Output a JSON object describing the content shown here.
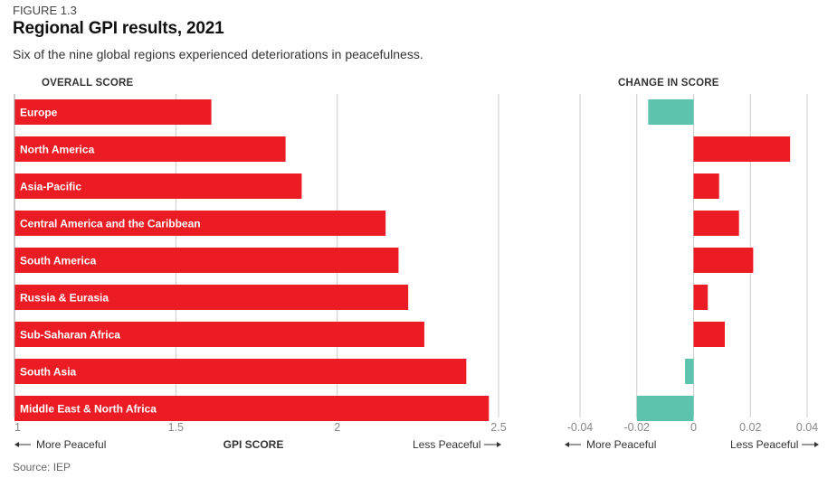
{
  "figure_label": "FIGURE 1.3",
  "title": "Regional GPI results, 2021",
  "subtitle": "Six of the nine global regions experienced deteriorations in peacefulness.",
  "source": "Source: IEP",
  "colors": {
    "deteriorate": "#ec1c24",
    "improve": "#5cc4ac",
    "grid": "#cccccc"
  },
  "chart_data": [
    {
      "type": "bar",
      "orientation": "horizontal",
      "header": "OVERALL SCORE",
      "categories": [
        "Europe",
        "North America",
        "Asia-Pacific",
        "Central America and the Caribbean",
        "South America",
        "Russia & Eurasia",
        "Sub-Saharan Africa",
        "South Asia",
        "Middle East & North Africa"
      ],
      "values": [
        1.61,
        1.84,
        1.89,
        2.15,
        2.19,
        2.22,
        2.27,
        2.4,
        2.47
      ],
      "xlim": [
        1,
        2.5
      ],
      "ticks": [
        "1",
        "1.5",
        "2",
        "2.5"
      ],
      "xlabel": "GPI SCORE",
      "left_direction": "More Peaceful",
      "right_direction": "Less Peaceful"
    },
    {
      "type": "bar",
      "orientation": "horizontal",
      "header": "CHANGE IN SCORE",
      "categories": [
        "Europe",
        "North America",
        "Asia-Pacific",
        "Central America and the Caribbean",
        "South America",
        "Russia & Eurasia",
        "Sub-Saharan Africa",
        "South Asia",
        "Middle East & North Africa"
      ],
      "values": [
        -0.016,
        0.034,
        0.009,
        0.016,
        0.021,
        0.005,
        0.011,
        -0.003,
        -0.02
      ],
      "xlim": [
        -0.04,
        0.04
      ],
      "ticks": [
        "-0.04",
        "-0.02",
        "0",
        "0.02",
        "0.04"
      ],
      "left_direction": "More Peaceful",
      "right_direction": "Less Peaceful"
    }
  ]
}
